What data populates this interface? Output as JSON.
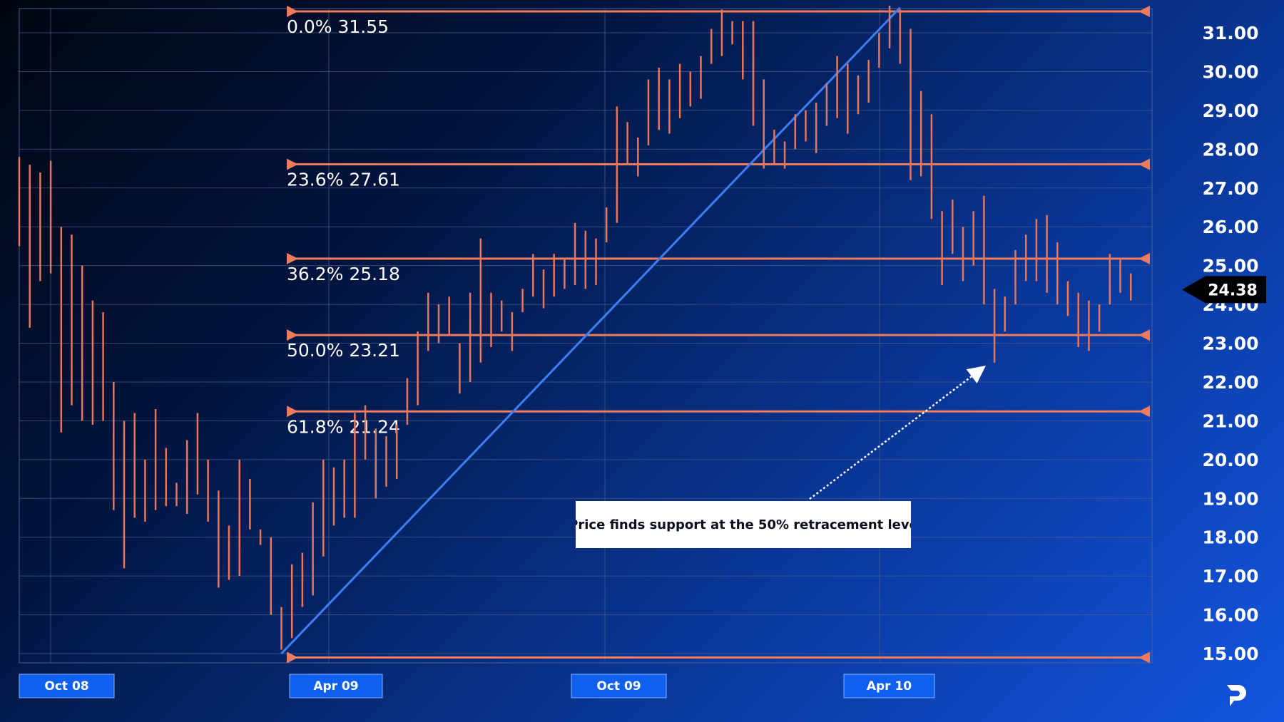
{
  "chart_data": {
    "type": "ohlc",
    "x_labels": [
      "Oct 08",
      "Apr 09",
      "Oct 09",
      "Apr 10"
    ],
    "y_ticks": [
      "31.00",
      "30.00",
      "29.00",
      "28.00",
      "27.00",
      "26.00",
      "25.00",
      "24.00",
      "23.00",
      "22.00",
      "21.00",
      "20.00",
      "19.00",
      "18.00",
      "17.00",
      "16.00",
      "15.00"
    ],
    "y_tick_values": [
      31,
      30,
      29,
      28,
      27,
      26,
      25,
      24,
      23,
      22,
      21,
      20,
      19,
      18,
      17,
      16,
      15
    ],
    "ylim": [
      15,
      31.6
    ],
    "current_price": "24.38",
    "current_price_value": 24.38,
    "grid": true,
    "series": [
      {
        "values": [
          [
            0,
            27.8,
            25.5
          ],
          [
            1,
            27.6,
            23.4
          ],
          [
            2,
            27.4,
            24.6
          ],
          [
            3,
            27.7,
            24.8
          ],
          [
            4,
            26.0,
            20.7
          ],
          [
            5,
            25.8,
            21.4
          ],
          [
            6,
            25.0,
            21.0
          ],
          [
            7,
            24.1,
            20.9
          ],
          [
            8,
            23.8,
            21.0
          ],
          [
            9,
            22.0,
            18.7
          ],
          [
            10,
            21.0,
            17.2
          ],
          [
            11,
            21.2,
            18.5
          ],
          [
            12,
            20.0,
            18.4
          ],
          [
            13,
            21.3,
            18.7
          ],
          [
            14,
            20.3,
            18.8
          ],
          [
            15,
            19.4,
            18.8
          ],
          [
            16,
            20.5,
            18.6
          ],
          [
            17,
            21.2,
            19.1
          ],
          [
            18,
            20.0,
            18.4
          ],
          [
            19,
            19.2,
            16.7
          ],
          [
            20,
            18.3,
            16.9
          ],
          [
            21,
            20.0,
            17.0
          ],
          [
            22,
            19.5,
            18.2
          ],
          [
            23,
            18.2,
            17.8
          ],
          [
            24,
            18.0,
            16.0
          ],
          [
            25,
            16.2,
            15.1
          ],
          [
            26,
            17.3,
            15.4
          ],
          [
            27,
            17.6,
            16.2
          ],
          [
            28,
            18.9,
            16.5
          ],
          [
            29,
            20.0,
            17.5
          ],
          [
            30,
            19.8,
            18.3
          ],
          [
            31,
            20.0,
            18.5
          ],
          [
            32,
            21.2,
            18.5
          ],
          [
            33,
            21.4,
            20.0
          ],
          [
            34,
            20.8,
            19.0
          ],
          [
            35,
            20.6,
            19.3
          ],
          [
            36,
            20.9,
            19.5
          ],
          [
            37,
            22.1,
            20.9
          ],
          [
            38,
            23.3,
            21.4
          ],
          [
            39,
            24.3,
            22.8
          ],
          [
            40,
            24.0,
            23.0
          ],
          [
            41,
            24.2,
            23.2
          ],
          [
            42,
            23.0,
            21.7
          ],
          [
            43,
            24.3,
            22.0
          ],
          [
            44,
            25.7,
            22.5
          ],
          [
            45,
            24.3,
            22.9
          ],
          [
            46,
            24.1,
            23.3
          ],
          [
            47,
            23.8,
            22.8
          ],
          [
            48,
            24.4,
            23.8
          ],
          [
            49,
            25.3,
            24.2
          ],
          [
            50,
            24.9,
            23.9
          ],
          [
            51,
            25.3,
            24.2
          ],
          [
            52,
            25.2,
            24.4
          ],
          [
            53,
            26.1,
            24.5
          ],
          [
            54,
            25.9,
            24.4
          ],
          [
            55,
            25.7,
            24.5
          ],
          [
            56,
            26.5,
            25.6
          ],
          [
            57,
            29.1,
            26.1
          ],
          [
            58,
            28.7,
            27.6
          ],
          [
            59,
            28.3,
            27.3
          ],
          [
            60,
            29.8,
            28.1
          ],
          [
            61,
            30.1,
            28.5
          ],
          [
            62,
            29.8,
            28.4
          ],
          [
            63,
            30.2,
            28.8
          ],
          [
            64,
            30.0,
            29.1
          ],
          [
            65,
            30.4,
            29.3
          ],
          [
            66,
            31.1,
            30.2
          ],
          [
            67,
            31.6,
            30.4
          ],
          [
            68,
            31.3,
            30.7
          ],
          [
            69,
            31.3,
            29.8
          ],
          [
            70,
            31.3,
            28.6
          ],
          [
            71,
            29.8,
            27.5
          ],
          [
            72,
            28.5,
            27.6
          ],
          [
            73,
            28.2,
            27.5
          ],
          [
            74,
            28.9,
            28.0
          ],
          [
            75,
            29.0,
            28.2
          ],
          [
            76,
            29.2,
            27.9
          ],
          [
            77,
            29.7,
            28.6
          ],
          [
            78,
            30.4,
            28.8
          ],
          [
            79,
            30.2,
            28.4
          ],
          [
            80,
            29.9,
            28.9
          ],
          [
            81,
            30.3,
            29.2
          ],
          [
            82,
            31.0,
            30.1
          ],
          [
            83,
            31.7,
            30.6
          ],
          [
            84,
            31.6,
            30.2
          ],
          [
            85,
            31.1,
            27.2
          ],
          [
            86,
            29.5,
            27.3
          ],
          [
            87,
            28.9,
            26.2
          ],
          [
            88,
            26.4,
            24.5
          ],
          [
            89,
            26.7,
            25.3
          ],
          [
            90,
            26.0,
            24.6
          ],
          [
            91,
            26.4,
            25.0
          ],
          [
            92,
            26.8,
            24.0
          ],
          [
            93,
            24.4,
            22.5
          ],
          [
            94,
            24.2,
            23.3
          ],
          [
            95,
            25.4,
            24.0
          ],
          [
            96,
            25.8,
            24.6
          ],
          [
            97,
            26.2,
            24.6
          ],
          [
            98,
            26.3,
            24.3
          ],
          [
            99,
            25.6,
            24.0
          ],
          [
            100,
            24.6,
            23.7
          ],
          [
            101,
            24.3,
            22.9
          ],
          [
            102,
            24.1,
            22.8
          ],
          [
            103,
            24.0,
            23.3
          ],
          [
            104,
            25.3,
            24.0
          ],
          [
            105,
            25.2,
            24.3
          ],
          [
            106,
            24.8,
            24.1
          ]
        ]
      }
    ],
    "fib_levels": [
      {
        "label": "0.0% 31.55",
        "value": 31.55
      },
      {
        "label": "23.6% 27.61",
        "value": 27.61
      },
      {
        "label": "36.2% 25.18",
        "value": 25.18
      },
      {
        "label": "50.0% 23.21",
        "value": 23.21
      },
      {
        "label": "61.8% 21.24",
        "value": 21.24
      },
      {
        "label": "",
        "value": 14.9
      }
    ],
    "trendline": {
      "from": {
        "bar": 25,
        "value": 15.0
      },
      "to": {
        "bar": 84,
        "value": 31.65
      }
    },
    "annotation": "Price finds support at the 50% retracement leve"
  },
  "colors": {
    "candle": "#e8765a",
    "fib_line": "#f07a5a",
    "trendline": "#3d7ff2",
    "grid": "#4a5f8f",
    "label_box": "#1060f0",
    "price_tag": "#000000",
    "arrow": "#ffffff"
  }
}
